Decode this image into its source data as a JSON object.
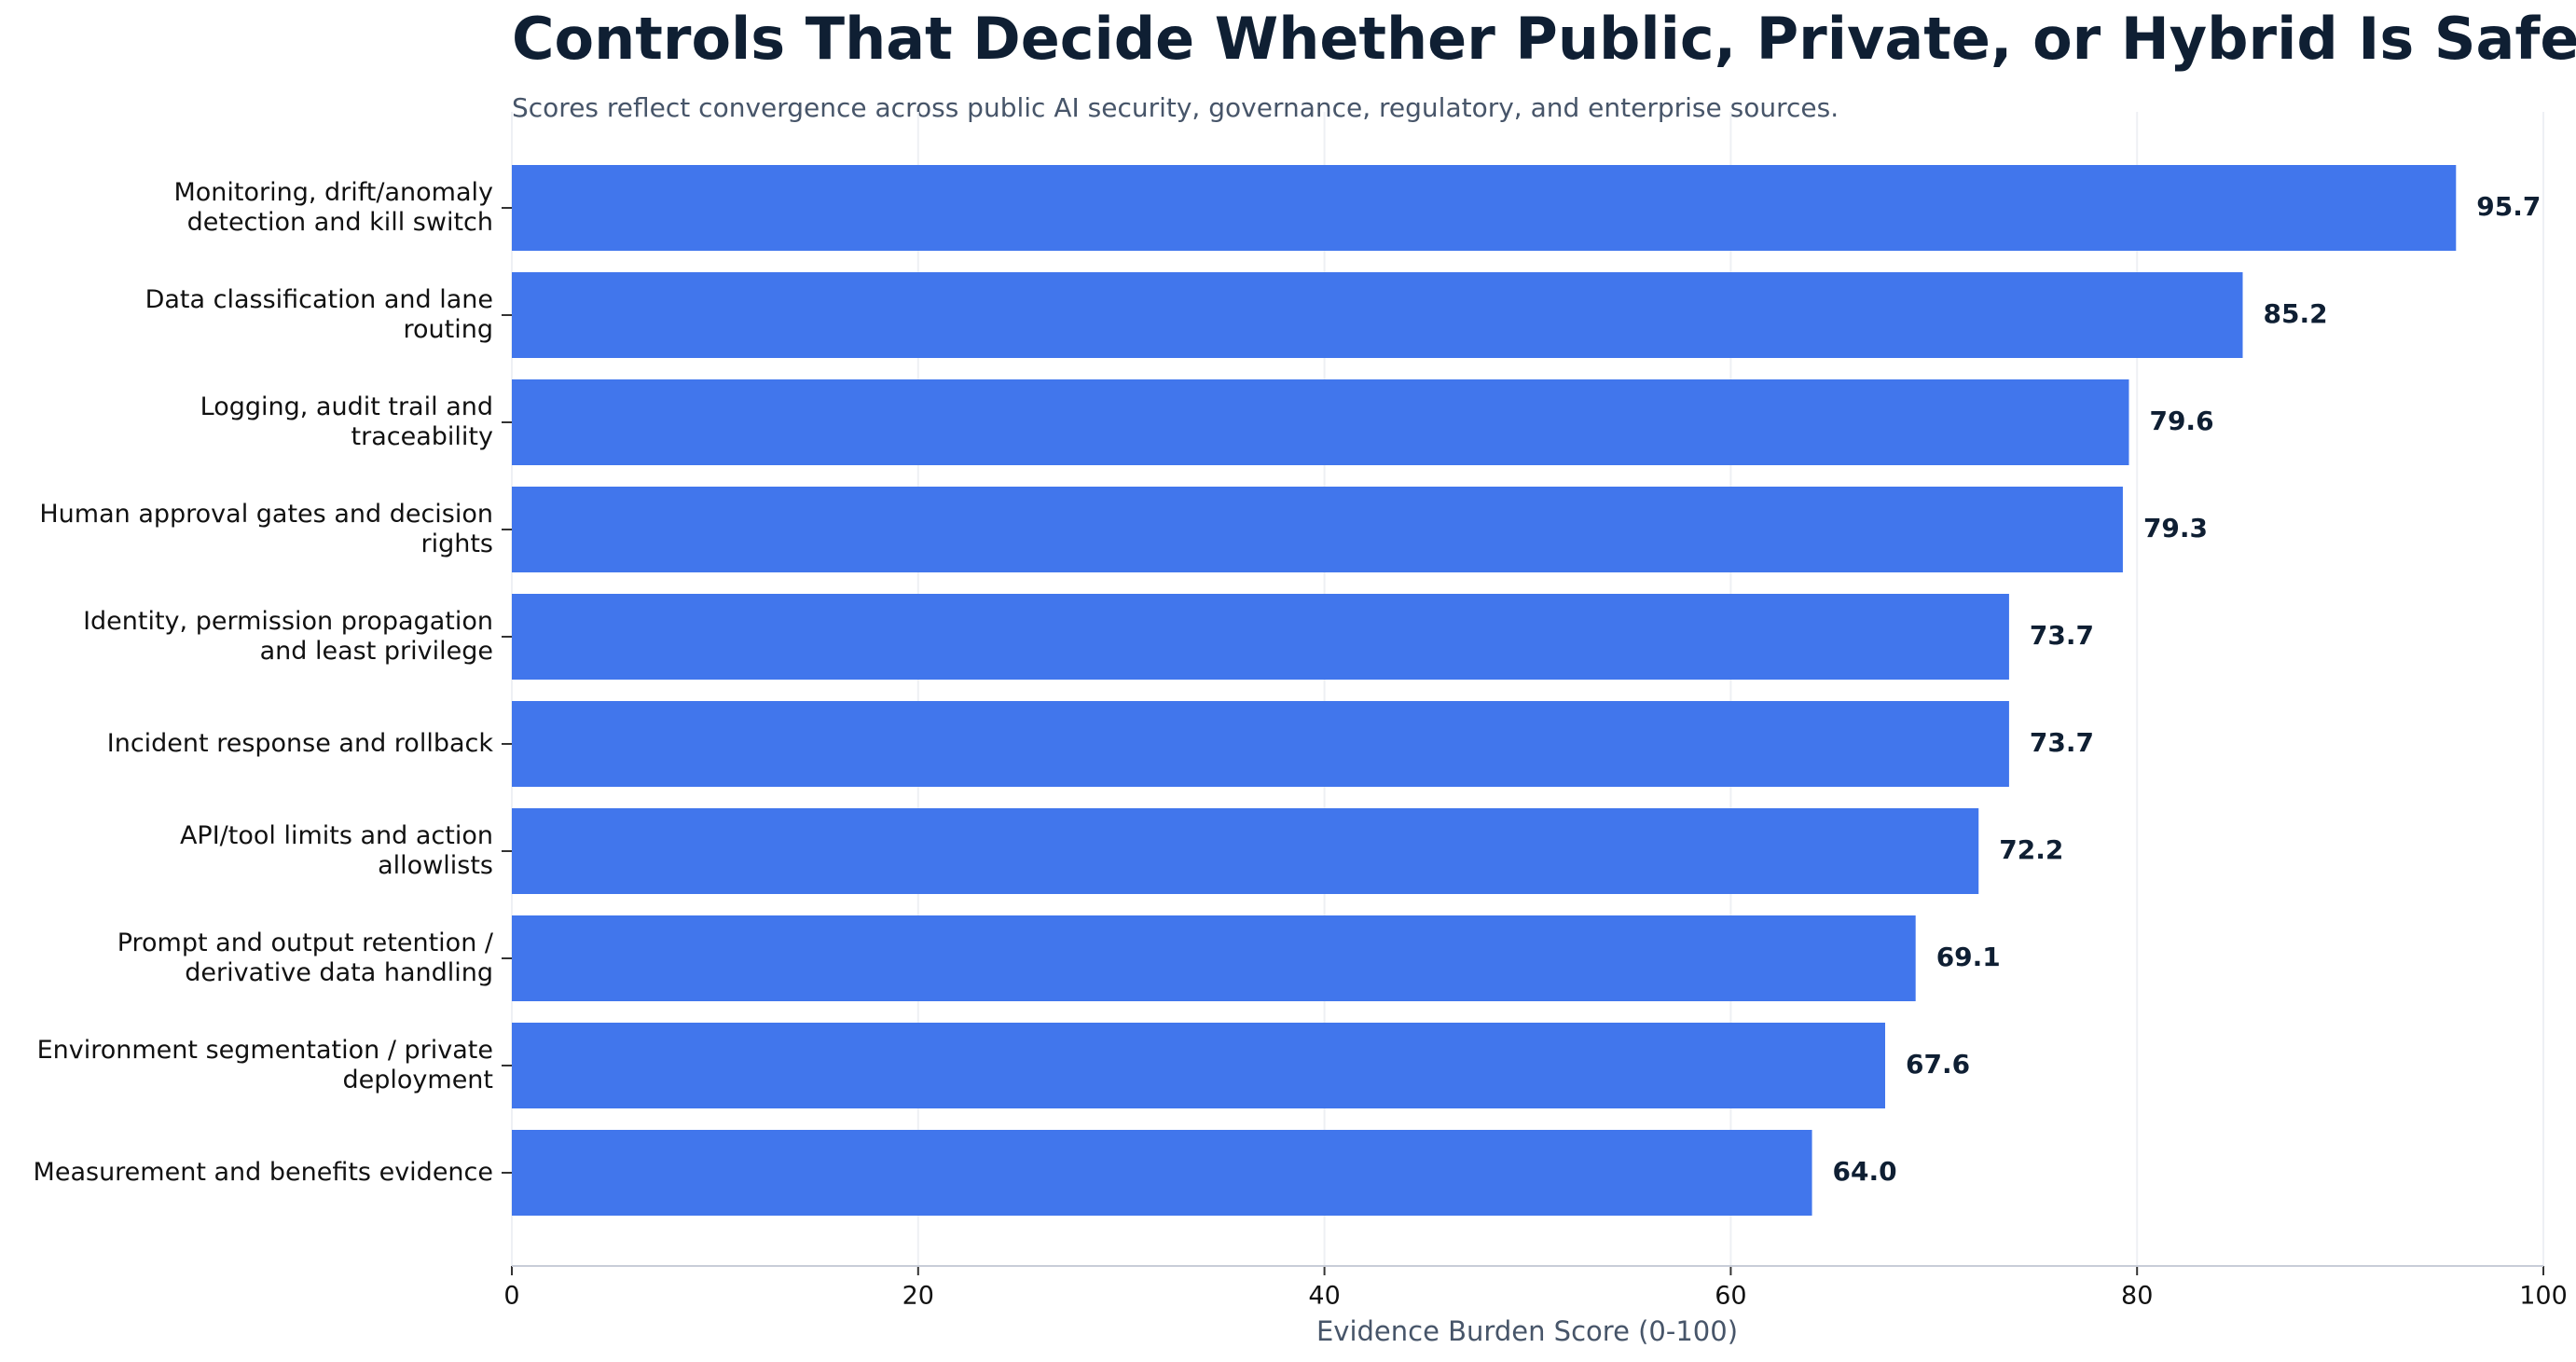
{
  "chart_data": {
    "type": "barh",
    "title": "Controls That Decide Whether Public, Private, or Hybrid Is Safe",
    "subtitle": "Scores reflect convergence across public AI security, governance, regulatory, and enterprise sources.",
    "x_label": "Evidence Burden Score (0-100)",
    "categories": [
      "Monitoring, drift/anomaly\ndetection and kill switch",
      "Data classification and lane\nrouting",
      "Logging, audit trail and\ntraceability",
      "Human approval gates and decision\nrights",
      "Identity, permission propagation\nand least privilege",
      "Incident response and rollback",
      "API/tool limits and action\nallowlists",
      "Prompt and output retention /\nderivative data handling",
      "Environment segmentation / private\ndeployment",
      "Measurement and benefits evidence"
    ],
    "values": [
      95.7,
      85.2,
      79.6,
      79.3,
      73.7,
      73.7,
      72.2,
      69.1,
      67.6,
      64.0
    ],
    "value_labels": [
      "95.7",
      "85.2",
      "79.6",
      "79.3",
      "73.7",
      "73.7",
      "72.2",
      "69.1",
      "67.6",
      "64.0"
    ],
    "color": "#4176ec",
    "xlim": [
      0,
      100
    ],
    "xticks": [
      0,
      20,
      40,
      60,
      80,
      100
    ],
    "grid": true
  }
}
